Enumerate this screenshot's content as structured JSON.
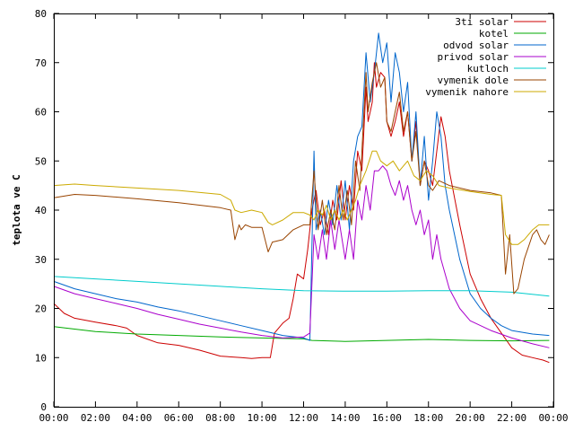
{
  "chart_data": {
    "type": "line",
    "title": "",
    "xlabel": "",
    "ylabel": "teplota ve C",
    "xlim": [
      0,
      24
    ],
    "ylim": [
      0,
      80
    ],
    "grid": false,
    "legend_position": "top-right",
    "x_ticks": [
      "00:00",
      "02:00",
      "04:00",
      "06:00",
      "08:00",
      "10:00",
      "12:00",
      "14:00",
      "16:00",
      "18:00",
      "20:00",
      "22:00",
      "00:00"
    ],
    "y_ticks": [
      "0",
      "10",
      "20",
      "30",
      "40",
      "50",
      "60",
      "70",
      "80"
    ],
    "series": [
      {
        "name": "3ti solar",
        "color": "#cc0000",
        "points": [
          [
            0,
            21
          ],
          [
            0.5,
            19
          ],
          [
            1,
            18
          ],
          [
            2,
            17.2
          ],
          [
            3,
            16.5
          ],
          [
            3.5,
            16
          ],
          [
            4,
            14.5
          ],
          [
            5,
            13
          ],
          [
            6,
            12.5
          ],
          [
            7,
            11.5
          ],
          [
            8,
            10.3
          ],
          [
            9,
            10
          ],
          [
            9.5,
            9.8
          ],
          [
            10,
            10
          ],
          [
            10.4,
            10
          ],
          [
            10.6,
            15
          ],
          [
            11,
            17
          ],
          [
            11.3,
            18
          ],
          [
            11.5,
            22
          ],
          [
            11.7,
            27
          ],
          [
            12,
            26
          ],
          [
            12.2,
            32
          ],
          [
            12.4,
            40
          ],
          [
            12.6,
            44
          ],
          [
            12.8,
            37
          ],
          [
            13,
            40
          ],
          [
            13.2,
            35
          ],
          [
            13.4,
            42
          ],
          [
            13.6,
            38
          ],
          [
            13.8,
            46
          ],
          [
            14,
            38
          ],
          [
            14.2,
            45
          ],
          [
            14.4,
            40
          ],
          [
            14.6,
            52
          ],
          [
            14.8,
            48
          ],
          [
            15,
            65
          ],
          [
            15.1,
            58
          ],
          [
            15.2,
            60
          ],
          [
            15.3,
            62
          ],
          [
            15.4,
            70
          ],
          [
            15.5,
            65
          ],
          [
            15.7,
            68
          ],
          [
            15.9,
            67
          ],
          [
            16,
            58
          ],
          [
            16.2,
            55
          ],
          [
            16.4,
            58
          ],
          [
            16.6,
            62
          ],
          [
            16.8,
            55
          ],
          [
            17,
            60
          ],
          [
            17.2,
            50
          ],
          [
            17.4,
            58
          ],
          [
            17.6,
            45
          ],
          [
            17.8,
            50
          ],
          [
            18,
            48
          ],
          [
            18.2,
            45
          ],
          [
            18.4,
            52
          ],
          [
            18.6,
            59
          ],
          [
            18.8,
            55
          ],
          [
            19,
            48
          ],
          [
            19.5,
            37
          ],
          [
            20,
            27
          ],
          [
            20.5,
            22
          ],
          [
            21,
            18
          ],
          [
            21.5,
            15
          ],
          [
            22,
            12
          ],
          [
            22.5,
            10.5
          ],
          [
            23,
            10
          ],
          [
            23.5,
            9.5
          ],
          [
            23.8,
            9
          ]
        ]
      },
      {
        "name": "kotel",
        "color": "#00aa00",
        "points": [
          [
            0,
            16.3
          ],
          [
            2,
            15.3
          ],
          [
            4,
            14.8
          ],
          [
            6,
            14.5
          ],
          [
            8,
            14.2
          ],
          [
            10,
            14.0
          ],
          [
            12,
            13.8
          ],
          [
            12.4,
            13.5
          ],
          [
            14,
            13.3
          ],
          [
            16,
            13.5
          ],
          [
            18,
            13.7
          ],
          [
            20,
            13.5
          ],
          [
            22,
            13.4
          ],
          [
            23.8,
            13.5
          ]
        ]
      },
      {
        "name": "odvod solar",
        "color": "#0066cc",
        "points": [
          [
            0,
            25.5
          ],
          [
            1,
            24
          ],
          [
            2,
            23
          ],
          [
            3,
            22
          ],
          [
            4,
            21.3
          ],
          [
            5,
            20.3
          ],
          [
            6,
            19.5
          ],
          [
            7,
            18.5
          ],
          [
            8,
            17.5
          ],
          [
            9,
            16.5
          ],
          [
            10,
            15.5
          ],
          [
            11,
            14.5
          ],
          [
            12,
            14
          ],
          [
            12.3,
            13.5
          ],
          [
            12.5,
            52
          ],
          [
            12.6,
            36
          ],
          [
            12.8,
            40
          ],
          [
            13,
            35
          ],
          [
            13.2,
            42
          ],
          [
            13.4,
            37
          ],
          [
            13.6,
            45
          ],
          [
            13.8,
            38
          ],
          [
            14,
            46
          ],
          [
            14.2,
            36
          ],
          [
            14.4,
            50
          ],
          [
            14.6,
            55
          ],
          [
            14.8,
            57
          ],
          [
            15,
            72
          ],
          [
            15.2,
            62
          ],
          [
            15.4,
            68
          ],
          [
            15.6,
            76
          ],
          [
            15.8,
            70
          ],
          [
            16,
            74
          ],
          [
            16.2,
            62
          ],
          [
            16.4,
            72
          ],
          [
            16.6,
            68
          ],
          [
            16.8,
            60
          ],
          [
            17,
            66
          ],
          [
            17.2,
            50
          ],
          [
            17.4,
            60
          ],
          [
            17.6,
            45
          ],
          [
            17.8,
            55
          ],
          [
            18,
            42
          ],
          [
            18.2,
            50
          ],
          [
            18.4,
            60
          ],
          [
            18.6,
            55
          ],
          [
            18.8,
            45
          ],
          [
            19,
            40
          ],
          [
            19.5,
            30
          ],
          [
            20,
            23
          ],
          [
            20.5,
            20
          ],
          [
            21,
            18
          ],
          [
            21.5,
            16.5
          ],
          [
            22,
            15.5
          ],
          [
            23,
            14.8
          ],
          [
            23.8,
            14.5
          ]
        ]
      },
      {
        "name": "privod solar",
        "color": "#aa00cc",
        "points": [
          [
            0,
            24.5
          ],
          [
            1,
            23
          ],
          [
            2,
            22
          ],
          [
            3,
            21
          ],
          [
            4,
            20
          ],
          [
            5,
            18.8
          ],
          [
            6,
            17.8
          ],
          [
            7,
            16.8
          ],
          [
            8,
            16
          ],
          [
            9,
            15.2
          ],
          [
            10,
            14.5
          ],
          [
            11,
            14
          ],
          [
            12,
            14.2
          ],
          [
            12.3,
            15
          ],
          [
            12.5,
            35
          ],
          [
            12.7,
            30
          ],
          [
            12.9,
            36
          ],
          [
            13.1,
            30
          ],
          [
            13.3,
            38
          ],
          [
            13.5,
            32
          ],
          [
            13.7,
            38
          ],
          [
            14,
            30
          ],
          [
            14.2,
            36
          ],
          [
            14.4,
            30
          ],
          [
            14.6,
            42
          ],
          [
            14.8,
            38
          ],
          [
            15,
            45
          ],
          [
            15.2,
            40
          ],
          [
            15.4,
            48
          ],
          [
            15.6,
            48
          ],
          [
            15.8,
            49
          ],
          [
            16,
            48
          ],
          [
            16.2,
            45
          ],
          [
            16.4,
            43
          ],
          [
            16.6,
            46
          ],
          [
            16.8,
            42
          ],
          [
            17,
            45
          ],
          [
            17.2,
            40
          ],
          [
            17.4,
            37
          ],
          [
            17.6,
            40
          ],
          [
            17.8,
            35
          ],
          [
            18,
            38
          ],
          [
            18.2,
            30
          ],
          [
            18.4,
            35
          ],
          [
            18.6,
            30
          ],
          [
            19,
            24
          ],
          [
            19.5,
            20
          ],
          [
            20,
            17.5
          ],
          [
            21,
            15.5
          ],
          [
            22,
            14
          ],
          [
            23,
            12.8
          ],
          [
            23.8,
            12
          ]
        ]
      },
      {
        "name": "kutloch",
        "color": "#00cccc",
        "points": [
          [
            0,
            26.5
          ],
          [
            2,
            26
          ],
          [
            4,
            25.5
          ],
          [
            6,
            25
          ],
          [
            8,
            24.5
          ],
          [
            10,
            24
          ],
          [
            12,
            23.6
          ],
          [
            14,
            23.5
          ],
          [
            16,
            23.5
          ],
          [
            18,
            23.6
          ],
          [
            20,
            23.6
          ],
          [
            22,
            23.3
          ],
          [
            23.8,
            22.5
          ]
        ]
      },
      {
        "name": "vymenik dole",
        "color": "#994400",
        "points": [
          [
            0,
            42.5
          ],
          [
            1,
            43.2
          ],
          [
            2,
            43
          ],
          [
            4,
            42.3
          ],
          [
            6,
            41.5
          ],
          [
            8,
            40.5
          ],
          [
            8.5,
            40
          ],
          [
            8.7,
            34
          ],
          [
            8.9,
            37
          ],
          [
            9,
            36
          ],
          [
            9.2,
            37
          ],
          [
            9.5,
            36.5
          ],
          [
            10,
            36.5
          ],
          [
            10.3,
            31.5
          ],
          [
            10.5,
            33.5
          ],
          [
            11,
            34
          ],
          [
            11.5,
            36
          ],
          [
            12,
            37
          ],
          [
            12.3,
            37
          ],
          [
            12.5,
            48
          ],
          [
            12.7,
            36
          ],
          [
            12.9,
            42
          ],
          [
            13.1,
            35
          ],
          [
            13.3,
            40
          ],
          [
            13.5,
            36
          ],
          [
            13.7,
            45
          ],
          [
            13.9,
            38
          ],
          [
            14.1,
            44
          ],
          [
            14.3,
            37
          ],
          [
            14.5,
            50
          ],
          [
            14.7,
            44
          ],
          [
            15,
            68
          ],
          [
            15.1,
            60
          ],
          [
            15.3,
            66
          ],
          [
            15.5,
            70
          ],
          [
            15.7,
            65
          ],
          [
            15.9,
            67
          ],
          [
            16,
            58
          ],
          [
            16.2,
            56
          ],
          [
            16.4,
            60
          ],
          [
            16.6,
            64
          ],
          [
            16.8,
            56
          ],
          [
            17,
            60
          ],
          [
            17.2,
            50
          ],
          [
            17.4,
            56
          ],
          [
            17.6,
            45
          ],
          [
            17.8,
            50
          ],
          [
            18,
            45
          ],
          [
            18.2,
            44
          ],
          [
            18.5,
            46
          ],
          [
            19,
            45
          ],
          [
            20,
            44
          ],
          [
            21,
            43.5
          ],
          [
            21.5,
            43
          ],
          [
            21.7,
            27
          ],
          [
            21.9,
            35
          ],
          [
            22.1,
            23
          ],
          [
            22.3,
            24
          ],
          [
            22.6,
            30
          ],
          [
            23,
            35
          ],
          [
            23.2,
            36
          ],
          [
            23.4,
            34
          ],
          [
            23.6,
            33
          ],
          [
            23.8,
            35
          ]
        ]
      },
      {
        "name": "vymenik nahore",
        "color": "#ccaa00",
        "points": [
          [
            0,
            45
          ],
          [
            1,
            45.3
          ],
          [
            2,
            45
          ],
          [
            4,
            44.5
          ],
          [
            6,
            44
          ],
          [
            8,
            43.2
          ],
          [
            8.5,
            42
          ],
          [
            8.7,
            40
          ],
          [
            9,
            39.5
          ],
          [
            9.5,
            40
          ],
          [
            10,
            39.5
          ],
          [
            10.3,
            37.5
          ],
          [
            10.5,
            37
          ],
          [
            11,
            38
          ],
          [
            11.5,
            39.5
          ],
          [
            12,
            39.5
          ],
          [
            12.3,
            39
          ],
          [
            12.5,
            38
          ],
          [
            12.7,
            40
          ],
          [
            12.9,
            39
          ],
          [
            13.1,
            41
          ],
          [
            13.3,
            38
          ],
          [
            13.5,
            40
          ],
          [
            13.7,
            38
          ],
          [
            13.9,
            40
          ],
          [
            14.1,
            38
          ],
          [
            14.3,
            40
          ],
          [
            14.5,
            42
          ],
          [
            14.7,
            45
          ],
          [
            15,
            48
          ],
          [
            15.3,
            52
          ],
          [
            15.5,
            52
          ],
          [
            15.7,
            50
          ],
          [
            16,
            49
          ],
          [
            16.3,
            50
          ],
          [
            16.6,
            48
          ],
          [
            17,
            50
          ],
          [
            17.3,
            47
          ],
          [
            17.6,
            46
          ],
          [
            17.9,
            48
          ],
          [
            18.2,
            47
          ],
          [
            18.5,
            45
          ],
          [
            19,
            44.5
          ],
          [
            20,
            43.8
          ],
          [
            21,
            43.2
          ],
          [
            21.5,
            43
          ],
          [
            21.7,
            35
          ],
          [
            22,
            33
          ],
          [
            22.3,
            33
          ],
          [
            22.6,
            34
          ],
          [
            23,
            36
          ],
          [
            23.3,
            37
          ],
          [
            23.6,
            37
          ],
          [
            23.8,
            37
          ]
        ]
      }
    ]
  }
}
